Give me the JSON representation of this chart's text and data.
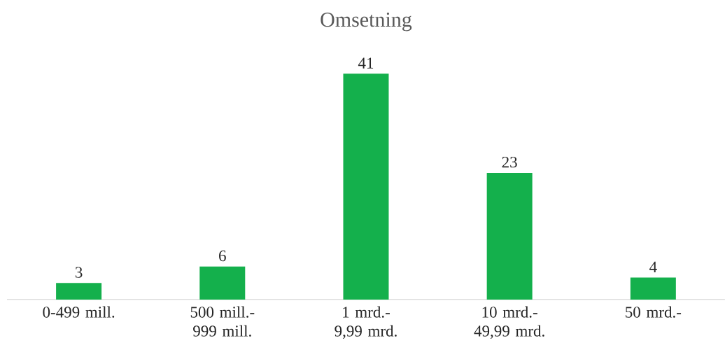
{
  "chart_data": {
    "type": "bar",
    "title": "Omsetning",
    "categories": [
      "0-499 mill.",
      "500 mill.-999 mill.",
      "1 mrd.-9,99 mrd.",
      "10 mrd.-49,99 mrd.",
      "50 mrd.-"
    ],
    "values": [
      3,
      6,
      41,
      23,
      4
    ],
    "color": "#14b04c",
    "data_labels": true
  }
}
